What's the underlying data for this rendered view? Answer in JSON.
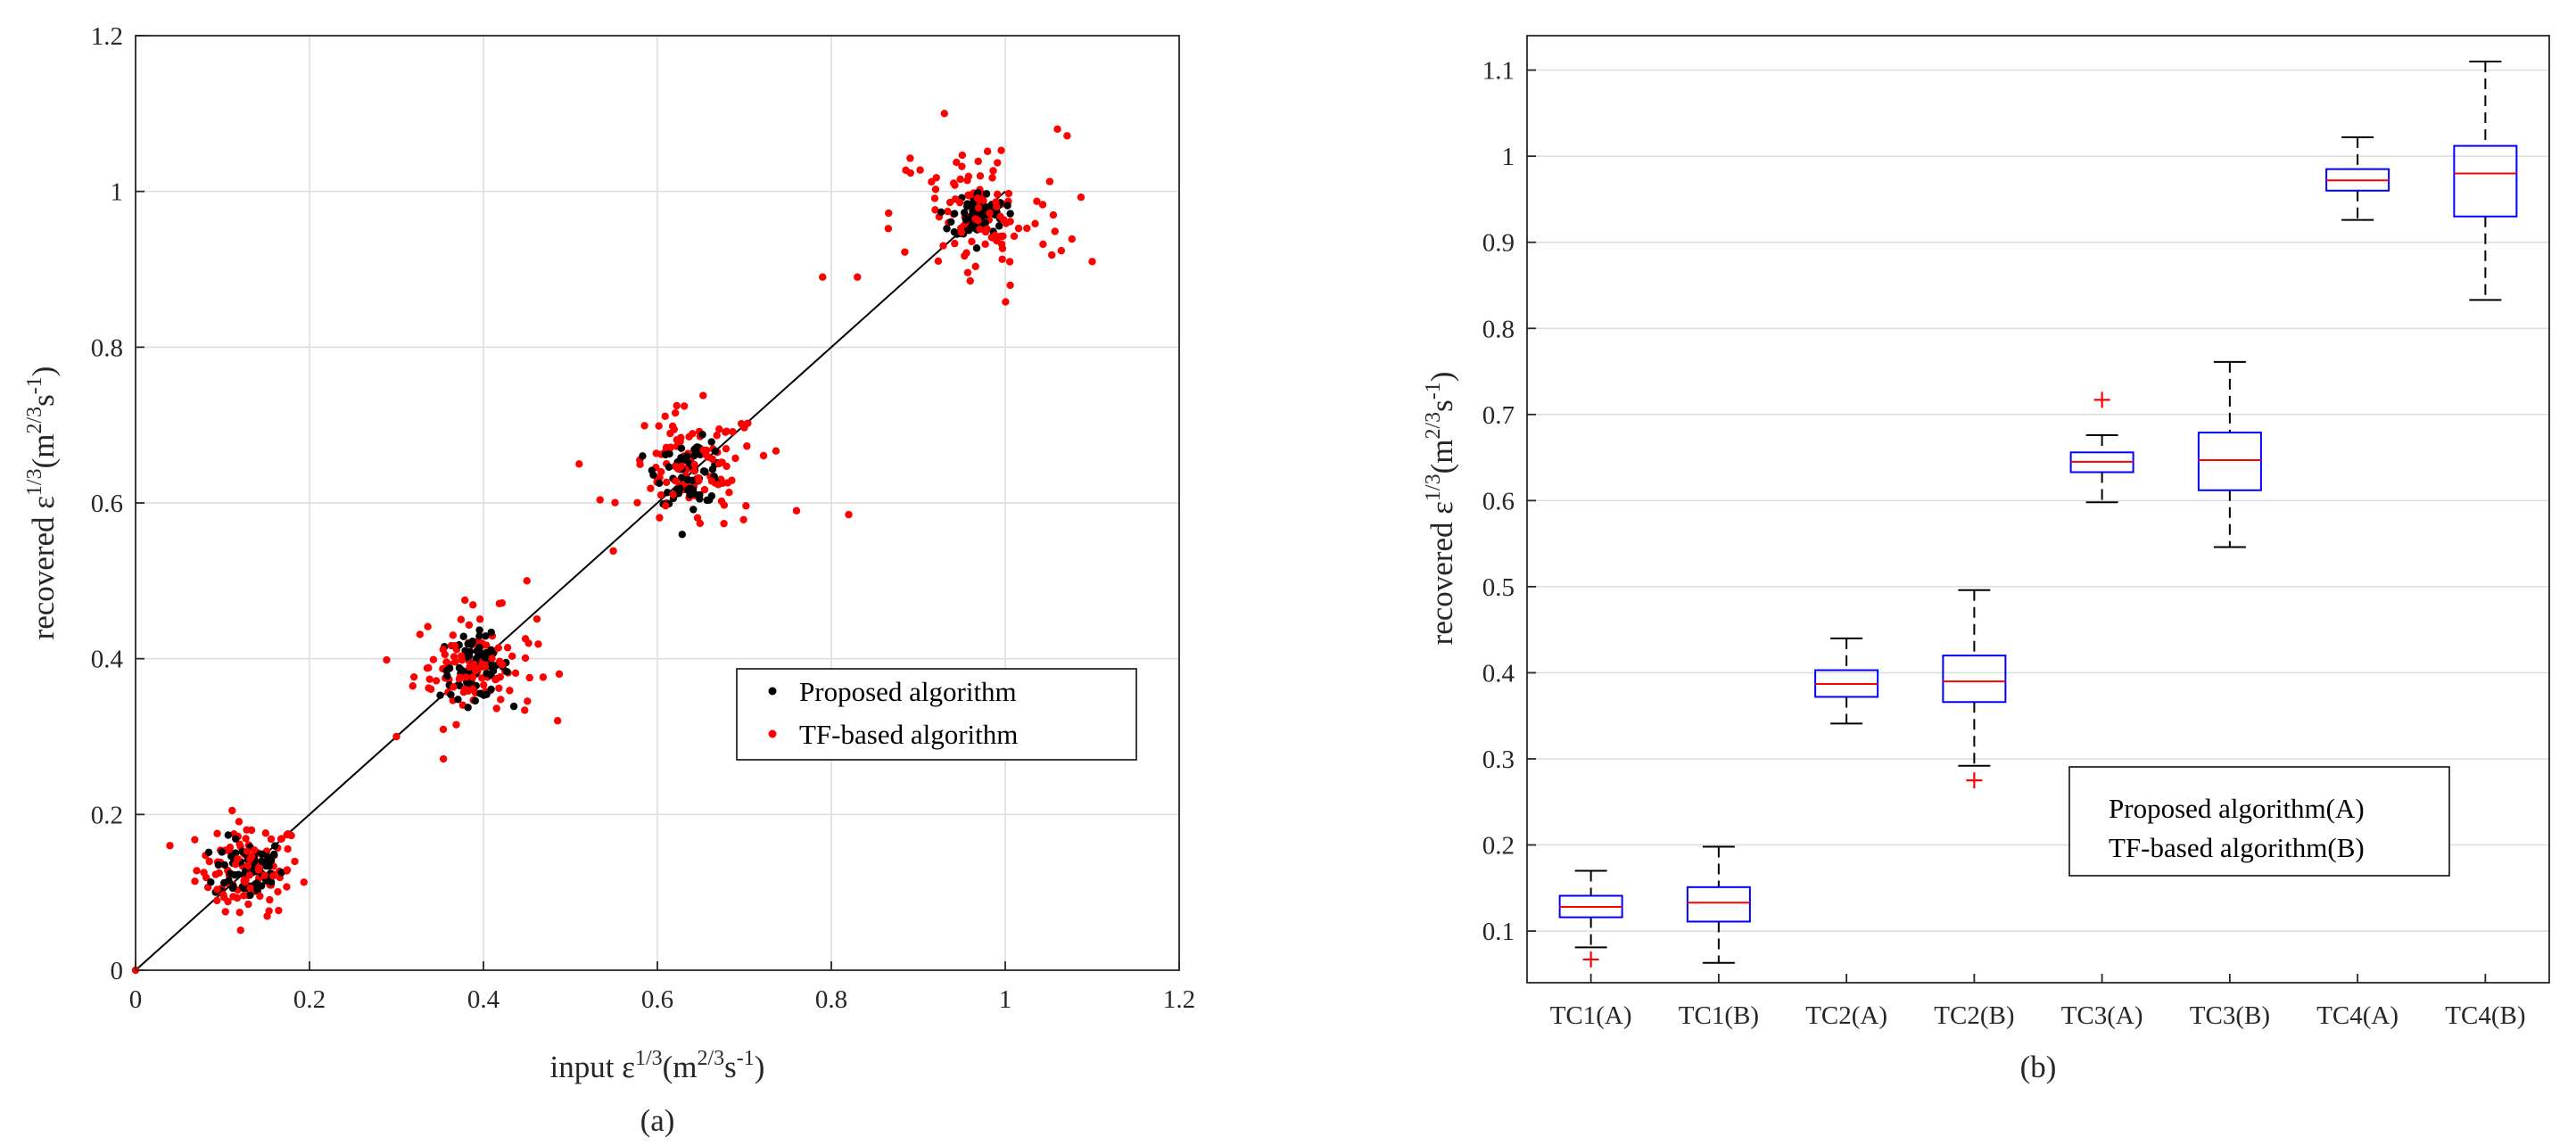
{
  "colors": {
    "proposed": "#000000",
    "tf": "#ff0000",
    "box": "#0000ff",
    "median": "#ff0000",
    "whisker": "#000000",
    "outlier": "#ff0000"
  },
  "chart_data": [
    {
      "type": "scatter",
      "panel_label": "(a)",
      "title": "",
      "xlabel_prefix": "input ε",
      "xlabel_units": "(m",
      "ylabel_prefix": "recovered ε",
      "units_sup1": "2/3",
      "units_s": "s",
      "units_sup2": "-1",
      "exponent": "1/3",
      "xlim": [
        0,
        1.2
      ],
      "ylim": [
        0,
        1.2
      ],
      "xticks": [
        "0",
        "0.2",
        "0.4",
        "0.6",
        "0.8",
        "1",
        "1.2"
      ],
      "yticks": [
        "0",
        "0.2",
        "0.4",
        "0.6",
        "0.8",
        "1",
        "1.2"
      ],
      "grid": true,
      "reference_line": {
        "from": [
          0,
          0
        ],
        "to": [
          1,
          1
        ]
      },
      "legend": {
        "position": "right",
        "entries": [
          "Proposed algorithm",
          "TF-based algorithm"
        ]
      },
      "clusters": [
        {
          "input": 0.13,
          "proposed_spread": 0.02,
          "tf_spread": 0.03
        },
        {
          "input": 0.39,
          "proposed_spread": 0.02,
          "tf_spread": 0.035
        },
        {
          "input": 0.64,
          "proposed_spread": 0.02,
          "tf_spread": 0.04
        },
        {
          "input": 0.97,
          "proposed_spread": 0.015,
          "tf_spread": 0.05
        }
      ],
      "series": [
        {
          "name": "Proposed algorithm",
          "points_per_cluster": 70
        },
        {
          "name": "TF-based algorithm",
          "points_per_cluster": 90
        }
      ],
      "extra_points": [
        {
          "series": "TF-based algorithm",
          "x": 0.0,
          "y": 0.0
        },
        {
          "series": "TF-based algorithm",
          "x": 0.76,
          "y": 0.59
        },
        {
          "series": "TF-based algorithm",
          "x": 0.82,
          "y": 0.585
        },
        {
          "series": "TF-based algorithm",
          "x": 0.51,
          "y": 0.65
        },
        {
          "series": "TF-based algorithm",
          "x": 0.79,
          "y": 0.89
        },
        {
          "series": "TF-based algorithm",
          "x": 0.83,
          "y": 0.89
        },
        {
          "series": "TF-based algorithm",
          "x": 1.1,
          "y": 0.91
        },
        {
          "series": "TF-based algorithm",
          "x": 0.93,
          "y": 1.1
        },
        {
          "series": "TF-based algorithm",
          "x": 1.06,
          "y": 1.08
        },
        {
          "series": "TF-based algorithm",
          "x": 0.3,
          "y": 0.3
        },
        {
          "series": "TF-based algorithm",
          "x": 0.45,
          "y": 0.5
        }
      ]
    },
    {
      "type": "box",
      "panel_label": "(b)",
      "title": "",
      "xlabel": "",
      "ylabel_prefix": "recovered ε",
      "exponent": "1/3",
      "units_prefix": "(m",
      "units_sup1": "2/3",
      "units_s": "s",
      "units_sup2": "-1",
      "ylim": [
        0.04,
        1.14
      ],
      "yticks": [
        "0.1",
        "0.2",
        "0.3",
        "0.4",
        "0.5",
        "0.6",
        "0.7",
        "0.8",
        "0.9",
        "1",
        "1.1"
      ],
      "grid": true,
      "legend": {
        "position": "bottom-right",
        "entries": [
          "Proposed algorithm(A)",
          "TF-based algorithm(B)"
        ]
      },
      "categories": [
        "TC1(A)",
        "TC1(B)",
        "TC2(A)",
        "TC2(B)",
        "TC3(A)",
        "TC3(B)",
        "TC4(A)",
        "TC4(B)"
      ],
      "boxes": [
        {
          "whisker_low": 0.081,
          "q1": 0.116,
          "median": 0.128,
          "q3": 0.141,
          "whisker_high": 0.17,
          "outliers": [
            0.067
          ]
        },
        {
          "whisker_low": 0.063,
          "q1": 0.111,
          "median": 0.133,
          "q3": 0.151,
          "whisker_high": 0.198,
          "outliers": []
        },
        {
          "whisker_low": 0.341,
          "q1": 0.372,
          "median": 0.387,
          "q3": 0.403,
          "whisker_high": 0.44,
          "outliers": []
        },
        {
          "whisker_low": 0.292,
          "q1": 0.366,
          "median": 0.39,
          "q3": 0.42,
          "whisker_high": 0.496,
          "outliers": [
            0.275
          ]
        },
        {
          "whisker_low": 0.598,
          "q1": 0.633,
          "median": 0.645,
          "q3": 0.656,
          "whisker_high": 0.676,
          "outliers": [
            0.717
          ]
        },
        {
          "whisker_low": 0.546,
          "q1": 0.612,
          "median": 0.647,
          "q3": 0.679,
          "whisker_high": 0.761,
          "outliers": []
        },
        {
          "whisker_low": 0.926,
          "q1": 0.96,
          "median": 0.972,
          "q3": 0.985,
          "whisker_high": 1.022,
          "outliers": []
        },
        {
          "whisker_low": 0.833,
          "q1": 0.93,
          "median": 0.98,
          "q3": 1.012,
          "whisker_high": 1.11,
          "outliers": []
        }
      ]
    }
  ]
}
